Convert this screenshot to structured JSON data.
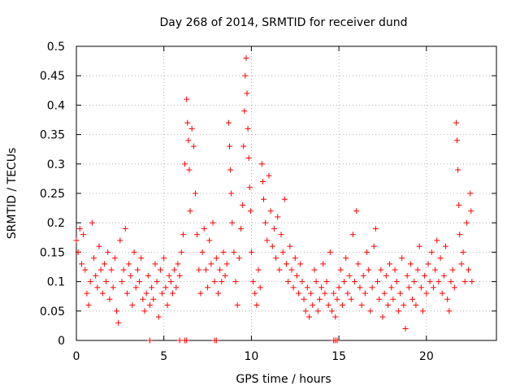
{
  "chart_data": {
    "type": "scatter",
    "title": "Day 268 of 2014, SRMTID for receiver dund",
    "xlabel": "GPS time / hours",
    "ylabel": "SRMTID / TECUs",
    "xlim": [
      0,
      24
    ],
    "ylim": [
      0,
      0.5
    ],
    "grid": true,
    "marker": "+",
    "color": "#ff0000",
    "x_ticks": [
      {
        "value": 0,
        "label": "0"
      },
      {
        "value": 5,
        "label": "5"
      },
      {
        "value": 10,
        "label": "10"
      },
      {
        "value": 15,
        "label": "15"
      },
      {
        "value": 20,
        "label": "20"
      }
    ],
    "y_ticks": [
      {
        "value": 0,
        "label": "0"
      },
      {
        "value": 0.05,
        "label": "0.05"
      },
      {
        "value": 0.1,
        "label": "0.1"
      },
      {
        "value": 0.15,
        "label": "0.15"
      },
      {
        "value": 0.2,
        "label": "0.2"
      },
      {
        "value": 0.25,
        "label": "0.25"
      },
      {
        "value": 0.3,
        "label": "0.3"
      },
      {
        "value": 0.35,
        "label": "0.35"
      },
      {
        "value": 0.4,
        "label": "0.4"
      },
      {
        "value": 0.45,
        "label": "0.45"
      },
      {
        "value": 0.5,
        "label": "0.5"
      }
    ],
    "points": [
      [
        0.0,
        0.17
      ],
      [
        0.1,
        0.15
      ],
      [
        0.2,
        0.19
      ],
      [
        0.3,
        0.13
      ],
      [
        0.4,
        0.18
      ],
      [
        0.5,
        0.12
      ],
      [
        0.6,
        0.08
      ],
      [
        0.7,
        0.06
      ],
      [
        0.8,
        0.1
      ],
      [
        0.9,
        0.2
      ],
      [
        1.0,
        0.14
      ],
      [
        1.1,
        0.11
      ],
      [
        1.2,
        0.09
      ],
      [
        1.3,
        0.16
      ],
      [
        1.4,
        0.12
      ],
      [
        1.5,
        0.08
      ],
      [
        1.6,
        0.13
      ],
      [
        1.7,
        0.1
      ],
      [
        1.8,
        0.15
      ],
      [
        1.9,
        0.07
      ],
      [
        2.0,
        0.12
      ],
      [
        2.1,
        0.09
      ],
      [
        2.2,
        0.14
      ],
      [
        2.3,
        0.05
      ],
      [
        2.4,
        0.03
      ],
      [
        2.5,
        0.17
      ],
      [
        2.6,
        0.1
      ],
      [
        2.7,
        0.12
      ],
      [
        2.8,
        0.19
      ],
      [
        2.9,
        0.08
      ],
      [
        3.0,
        0.13
      ],
      [
        3.1,
        0.11
      ],
      [
        3.2,
        0.06
      ],
      [
        3.3,
        0.15
      ],
      [
        3.4,
        0.09
      ],
      [
        3.5,
        0.12
      ],
      [
        3.6,
        0.1
      ],
      [
        3.7,
        0.14
      ],
      [
        3.8,
        0.07
      ],
      [
        3.9,
        0.05
      ],
      [
        4.0,
        0.08
      ],
      [
        4.1,
        0.11
      ],
      [
        4.2,
        0.06
      ],
      [
        4.3,
        0.09
      ],
      [
        4.4,
        0.07
      ],
      [
        4.5,
        0.13
      ],
      [
        4.6,
        0.1
      ],
      [
        4.7,
        0.04
      ],
      [
        4.8,
        0.12
      ],
      [
        4.9,
        0.08
      ],
      [
        5.0,
        0.14
      ],
      [
        5.1,
        0.09
      ],
      [
        5.2,
        0.06
      ],
      [
        5.3,
        0.11
      ],
      [
        5.4,
        0.1
      ],
      [
        5.5,
        0.08
      ],
      [
        5.6,
        0.12
      ],
      [
        5.7,
        0.09
      ],
      [
        5.8,
        0.13
      ],
      [
        5.9,
        0.11
      ],
      [
        6.0,
        0.15
      ],
      [
        6.1,
        0.18
      ],
      [
        6.2,
        0.3
      ],
      [
        6.3,
        0.41
      ],
      [
        6.35,
        0.37
      ],
      [
        6.4,
        0.34
      ],
      [
        6.45,
        0.29
      ],
      [
        6.5,
        0.22
      ],
      [
        6.6,
        0.36
      ],
      [
        6.7,
        0.33
      ],
      [
        6.8,
        0.25
      ],
      [
        6.9,
        0.18
      ],
      [
        7.0,
        0.12
      ],
      [
        7.1,
        0.08
      ],
      [
        7.2,
        0.15
      ],
      [
        7.3,
        0.19
      ],
      [
        7.4,
        0.12
      ],
      [
        7.5,
        0.09
      ],
      [
        7.6,
        0.17
      ],
      [
        7.7,
        0.13
      ],
      [
        7.8,
        0.2
      ],
      [
        7.9,
        0.1
      ],
      [
        8.0,
        0.14
      ],
      [
        8.1,
        0.08
      ],
      [
        8.2,
        0.12
      ],
      [
        8.3,
        0.1
      ],
      [
        8.4,
        0.15
      ],
      [
        8.5,
        0.11
      ],
      [
        8.6,
        0.13
      ],
      [
        8.7,
        0.37
      ],
      [
        8.75,
        0.33
      ],
      [
        8.8,
        0.29
      ],
      [
        8.85,
        0.25
      ],
      [
        8.9,
        0.2
      ],
      [
        9.0,
        0.15
      ],
      [
        9.1,
        0.1
      ],
      [
        9.2,
        0.06
      ],
      [
        9.3,
        0.14
      ],
      [
        9.4,
        0.19
      ],
      [
        9.5,
        0.23
      ],
      [
        9.55,
        0.33
      ],
      [
        9.6,
        0.39
      ],
      [
        9.65,
        0.45
      ],
      [
        9.7,
        0.48
      ],
      [
        9.75,
        0.42
      ],
      [
        9.8,
        0.36
      ],
      [
        9.85,
        0.31
      ],
      [
        9.9,
        0.26
      ],
      [
        9.95,
        0.22
      ],
      [
        10.0,
        0.15
      ],
      [
        10.1,
        0.1
      ],
      [
        10.2,
        0.08
      ],
      [
        10.3,
        0.06
      ],
      [
        10.4,
        0.12
      ],
      [
        10.5,
        0.09
      ],
      [
        10.6,
        0.3
      ],
      [
        10.65,
        0.27
      ],
      [
        10.7,
        0.24
      ],
      [
        10.8,
        0.2
      ],
      [
        10.9,
        0.17
      ],
      [
        11.0,
        0.28
      ],
      [
        11.1,
        0.22
      ],
      [
        11.2,
        0.16
      ],
      [
        11.3,
        0.19
      ],
      [
        11.4,
        0.14
      ],
      [
        11.5,
        0.21
      ],
      [
        11.6,
        0.12
      ],
      [
        11.7,
        0.18
      ],
      [
        11.8,
        0.15
      ],
      [
        11.9,
        0.24
      ],
      [
        12.0,
        0.13
      ],
      [
        12.1,
        0.1
      ],
      [
        12.2,
        0.16
      ],
      [
        12.3,
        0.12
      ],
      [
        12.4,
        0.09
      ],
      [
        12.5,
        0.14
      ],
      [
        12.6,
        0.11
      ],
      [
        12.7,
        0.08
      ],
      [
        12.8,
        0.13
      ],
      [
        12.9,
        0.1
      ],
      [
        13.0,
        0.07
      ],
      [
        13.1,
        0.05
      ],
      [
        13.2,
        0.09
      ],
      [
        13.3,
        0.04
      ],
      [
        13.4,
        0.08
      ],
      [
        13.5,
        0.06
      ],
      [
        13.6,
        0.12
      ],
      [
        13.7,
        0.1
      ],
      [
        13.8,
        0.05
      ],
      [
        13.9,
        0.07
      ],
      [
        14.0,
        0.09
      ],
      [
        14.1,
        0.13
      ],
      [
        14.2,
        0.08
      ],
      [
        14.3,
        0.1
      ],
      [
        14.4,
        0.06
      ],
      [
        14.5,
        0.15
      ],
      [
        14.6,
        0.05
      ],
      [
        14.7,
        0.08
      ],
      [
        14.8,
        0.04
      ],
      [
        14.9,
        0.07
      ],
      [
        15.0,
        0.09
      ],
      [
        15.1,
        0.12
      ],
      [
        15.2,
        0.06
      ],
      [
        15.3,
        0.1
      ],
      [
        15.4,
        0.14
      ],
      [
        15.5,
        0.08
      ],
      [
        15.6,
        0.11
      ],
      [
        15.7,
        0.07
      ],
      [
        15.8,
        0.18
      ],
      [
        15.9,
        0.1
      ],
      [
        16.0,
        0.22
      ],
      [
        16.1,
        0.13
      ],
      [
        16.2,
        0.09
      ],
      [
        16.3,
        0.06
      ],
      [
        16.4,
        0.11
      ],
      [
        16.5,
        0.08
      ],
      [
        16.6,
        0.15
      ],
      [
        16.7,
        0.12
      ],
      [
        16.8,
        0.05
      ],
      [
        16.9,
        0.09
      ],
      [
        17.0,
        0.16
      ],
      [
        17.1,
        0.19
      ],
      [
        17.2,
        0.1
      ],
      [
        17.3,
        0.07
      ],
      [
        17.4,
        0.12
      ],
      [
        17.5,
        0.04
      ],
      [
        17.6,
        0.08
      ],
      [
        17.7,
        0.11
      ],
      [
        17.8,
        0.06
      ],
      [
        17.9,
        0.13
      ],
      [
        18.0,
        0.09
      ],
      [
        18.1,
        0.07
      ],
      [
        18.2,
        0.12
      ],
      [
        18.3,
        0.1
      ],
      [
        18.4,
        0.05
      ],
      [
        18.5,
        0.08
      ],
      [
        18.6,
        0.14
      ],
      [
        18.7,
        0.06
      ],
      [
        18.8,
        0.02
      ],
      [
        18.9,
        0.11
      ],
      [
        19.0,
        0.09
      ],
      [
        19.1,
        0.13
      ],
      [
        19.2,
        0.07
      ],
      [
        19.3,
        0.1
      ],
      [
        19.4,
        0.06
      ],
      [
        19.5,
        0.12
      ],
      [
        19.6,
        0.16
      ],
      [
        19.7,
        0.09
      ],
      [
        19.8,
        0.05
      ],
      [
        19.9,
        0.11
      ],
      [
        20.0,
        0.08
      ],
      [
        20.1,
        0.13
      ],
      [
        20.2,
        0.1
      ],
      [
        20.3,
        0.15
      ],
      [
        20.4,
        0.09
      ],
      [
        20.5,
        0.12
      ],
      [
        20.6,
        0.17
      ],
      [
        20.7,
        0.1
      ],
      [
        20.8,
        0.14
      ],
      [
        20.9,
        0.08
      ],
      [
        21.0,
        0.11
      ],
      [
        21.1,
        0.16
      ],
      [
        21.2,
        0.07
      ],
      [
        21.3,
        0.05
      ],
      [
        21.4,
        0.1
      ],
      [
        21.5,
        0.12
      ],
      [
        21.6,
        0.09
      ],
      [
        21.7,
        0.37
      ],
      [
        21.75,
        0.34
      ],
      [
        21.8,
        0.29
      ],
      [
        21.85,
        0.23
      ],
      [
        21.9,
        0.18
      ],
      [
        22.0,
        0.13
      ],
      [
        22.1,
        0.15
      ],
      [
        22.2,
        0.1
      ],
      [
        22.3,
        0.2
      ],
      [
        22.4,
        0.12
      ],
      [
        22.5,
        0.25
      ],
      [
        22.55,
        0.22
      ],
      [
        22.6,
        0.1
      ]
    ],
    "zero_points": [
      4.2,
      5.9,
      6.2,
      6.3,
      7.9,
      8.0,
      14.7,
      14.8,
      14.9
    ]
  }
}
